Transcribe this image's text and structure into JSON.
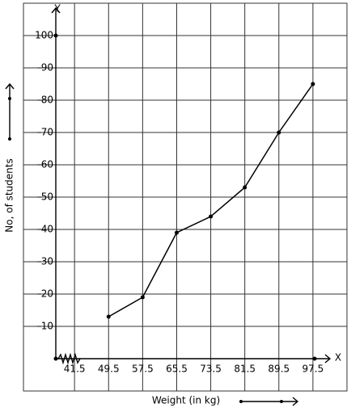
{
  "chart_data": {
    "type": "line",
    "x_label": "Weight (in kg)",
    "y_label": "No, of students",
    "x_axis_name": "X",
    "y_axis_name": "Y",
    "x": [
      49.5,
      57.5,
      65.5,
      73.5,
      81.5,
      89.5,
      97.5
    ],
    "series": [
      {
        "color": "#000000",
        "values": [
          13,
          19,
          39,
          44,
          53,
          70,
          85
        ]
      }
    ],
    "xlim": [
      29.5,
      105.5
    ],
    "xticks": [
      41.5,
      49.5,
      57.5,
      65.5,
      73.5,
      81.5,
      89.5,
      97.5
    ],
    "ylim": [
      -10,
      110
    ],
    "yticks": [
      10,
      20,
      30,
      40,
      50,
      60,
      70,
      80,
      90,
      100
    ],
    "grid": true
  }
}
